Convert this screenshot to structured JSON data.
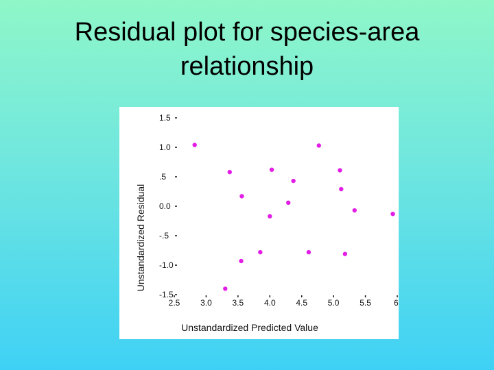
{
  "slide": {
    "title_line1": "Residual plot for species-area",
    "title_line2": "relationship"
  },
  "colors": {
    "background_top": "#8ff7c8",
    "background_bottom": "#3fd1f5",
    "point": "#e21ee6",
    "panel": "#ffffff"
  },
  "chart_data": {
    "type": "scatter",
    "title": "",
    "xlabel": "Unstandardized Predicted Value",
    "ylabel": "Unstandardized Residual",
    "xlim": [
      2.5,
      6.0
    ],
    "ylim": [
      -1.5,
      1.5
    ],
    "x_ticks": [
      "2.5",
      "3.0",
      "3.5",
      "4.0",
      "4.5",
      "5.0",
      "5.5",
      "6."
    ],
    "y_ticks": [
      "1.5",
      "1.0",
      ".5",
      "0.0",
      "-.5",
      "-1.0",
      "-1.5"
    ],
    "grid": false,
    "points": [
      {
        "x": 2.82,
        "y": 1.04
      },
      {
        "x": 3.3,
        "y": -1.4
      },
      {
        "x": 3.37,
        "y": 0.58
      },
      {
        "x": 3.56,
        "y": 0.17
      },
      {
        "x": 3.55,
        "y": -0.93
      },
      {
        "x": 3.85,
        "y": -0.78
      },
      {
        "x": 4.0,
        "y": -0.17
      },
      {
        "x": 4.03,
        "y": 0.62
      },
      {
        "x": 4.29,
        "y": 0.06
      },
      {
        "x": 4.37,
        "y": 0.43
      },
      {
        "x": 4.61,
        "y": -0.78
      },
      {
        "x": 4.77,
        "y": 1.03
      },
      {
        "x": 5.1,
        "y": 0.61
      },
      {
        "x": 5.12,
        "y": 0.29
      },
      {
        "x": 5.18,
        "y": -0.81
      },
      {
        "x": 5.33,
        "y": -0.07
      },
      {
        "x": 5.93,
        "y": -0.13
      }
    ]
  }
}
